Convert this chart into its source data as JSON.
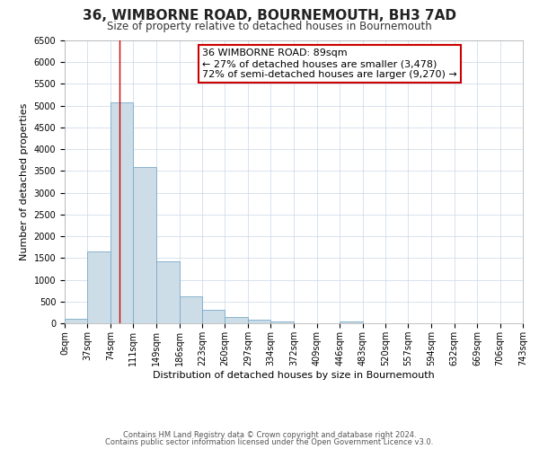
{
  "title": "36, WIMBORNE ROAD, BOURNEMOUTH, BH3 7AD",
  "subtitle": "Size of property relative to detached houses in Bournemouth",
  "xlabel": "Distribution of detached houses by size in Bournemouth",
  "ylabel": "Number of detached properties",
  "bin_edges": [
    0,
    37,
    74,
    111,
    149,
    186,
    223,
    260,
    297,
    334,
    372,
    409,
    446,
    483,
    520,
    557,
    594,
    632,
    669,
    706,
    743
  ],
  "counts": [
    100,
    1650,
    5080,
    3600,
    1430,
    620,
    300,
    150,
    90,
    50,
    0,
    0,
    50,
    0,
    0,
    0,
    0,
    0,
    0,
    0
  ],
  "bar_color": "#ccdde8",
  "bar_edge_color": "#7aaac8",
  "property_line_x": 89,
  "property_line_color": "#cc0000",
  "annotation_line1": "36 WIMBORNE ROAD: 89sqm",
  "annotation_line2": "← 27% of detached houses are smaller (3,478)",
  "annotation_line3": "72% of semi-detached houses are larger (9,270) →",
  "annotation_box_color": "#ffffff",
  "annotation_box_edge_color": "#cc0000",
  "ylim": [
    0,
    6500
  ],
  "footer_line1": "Contains HM Land Registry data © Crown copyright and database right 2024.",
  "footer_line2": "Contains public sector information licensed under the Open Government Licence v3.0.",
  "bg_color": "#ffffff",
  "grid_color": "#c8d8e8",
  "tick_labels": [
    "0sqm",
    "37sqm",
    "74sqm",
    "111sqm",
    "149sqm",
    "186sqm",
    "223sqm",
    "260sqm",
    "297sqm",
    "334sqm",
    "372sqm",
    "409sqm",
    "446sqm",
    "483sqm",
    "520sqm",
    "557sqm",
    "594sqm",
    "632sqm",
    "669sqm",
    "706sqm",
    "743sqm"
  ],
  "title_fontsize": 11,
  "subtitle_fontsize": 8.5,
  "xlabel_fontsize": 8,
  "ylabel_fontsize": 8,
  "tick_fontsize": 7,
  "ytick_fontsize": 7,
  "footer_fontsize": 6,
  "ann_fontsize": 8
}
